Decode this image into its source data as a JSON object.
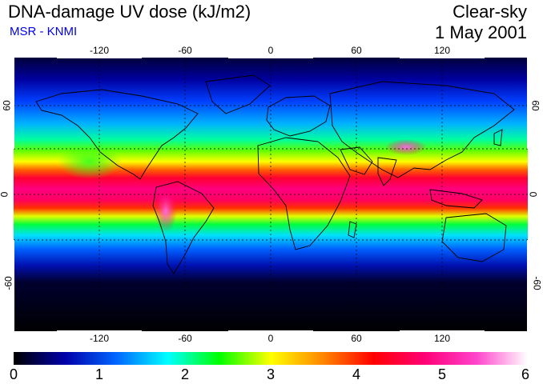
{
  "header": {
    "title": "DNA-damage UV dose (kJ/m2)",
    "subtitle": "MSR - KNMI",
    "sky_condition": "Clear-sky",
    "date": "1 May 2001"
  },
  "map": {
    "projection": "equirectangular",
    "lon_range": [
      -180,
      180
    ],
    "lat_range": [
      -90,
      90
    ],
    "lon_ticks": [
      "-120",
      "-60",
      "0",
      "60",
      "120"
    ],
    "lat_ticks": [
      "60",
      "0",
      "-60"
    ],
    "gridlines": "dotted, every 30 degrees",
    "coastlines": true,
    "data_regions": [
      {
        "region": "Tropics / equatorial belt",
        "approx_value": 4.5
      },
      {
        "region": "Andes",
        "approx_value": 5.5
      },
      {
        "region": "Tibetan Plateau",
        "approx_value": 5.3
      },
      {
        "region": "Mid-latitudes (30-45N)",
        "approx_value": 3.0
      },
      {
        "region": "High northern latitudes (60N)",
        "approx_value": 1.0
      },
      {
        "region": "Southern high latitudes (below 60S)",
        "approx_value": 0.0
      }
    ]
  },
  "colorbar": {
    "min": 0,
    "max": 6,
    "ticks": [
      "0",
      "1",
      "2",
      "3",
      "4",
      "5",
      "6"
    ],
    "colors": [
      "#000000",
      "#0000aa",
      "#0066ff",
      "#00ffff",
      "#00ff00",
      "#ffff00",
      "#ff8800",
      "#ff0000",
      "#ff0077",
      "#ff44cc",
      "#ffffff"
    ]
  }
}
